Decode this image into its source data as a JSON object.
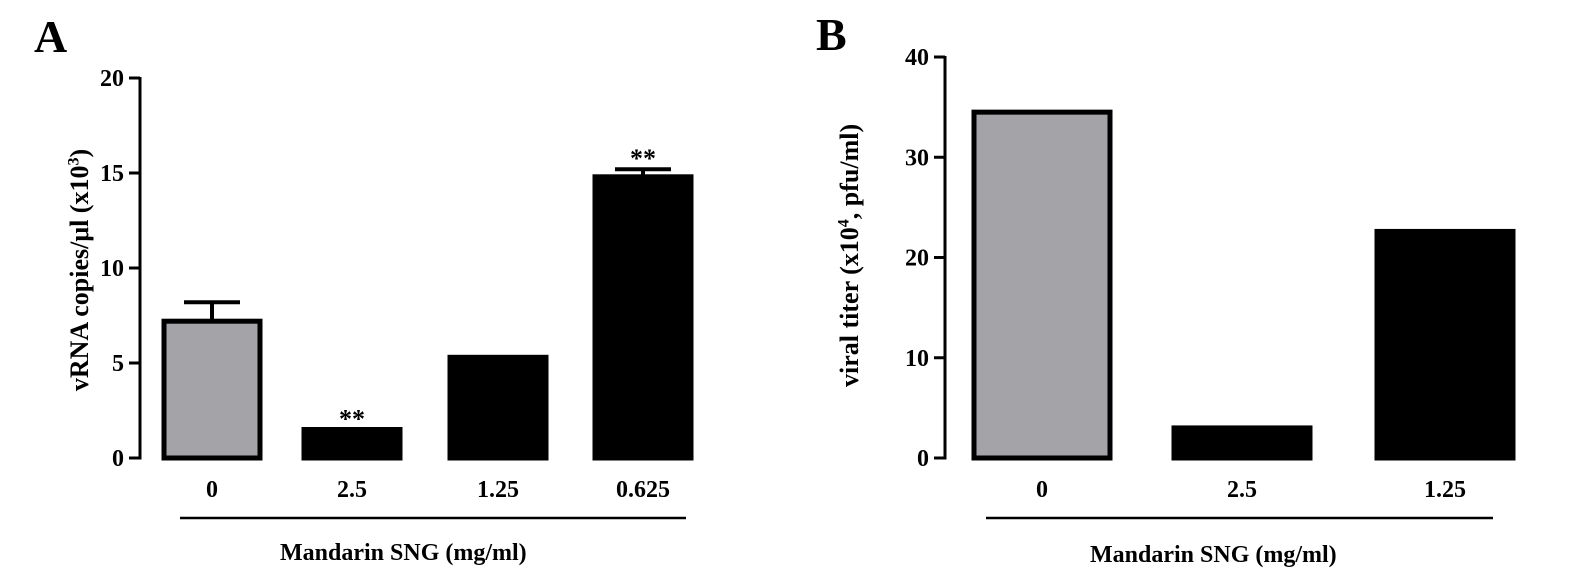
{
  "chart_data": [
    {
      "type": "bar",
      "panel_label": "A",
      "categories": [
        "0",
        "2.5",
        "1.25",
        "0.625"
      ],
      "values": [
        7.2,
        1.5,
        5.3,
        14.8
      ],
      "errors": [
        1.0,
        0,
        0,
        0.4
      ],
      "annotations": [
        "",
        "**",
        "",
        "**"
      ],
      "colors": [
        "#a3a3a8",
        "#000000",
        "#000000",
        "#000000"
      ],
      "ylabel_pre": "vRNA copies/μl (x10",
      "ylabel_sup": "3",
      "ylabel_post": ")",
      "xlabel": "Mandarin SNG (mg/ml)",
      "ylim": [
        0,
        20
      ],
      "yticks": [
        0,
        5,
        10,
        15,
        20
      ],
      "grid": false,
      "legend": "none"
    },
    {
      "type": "bar",
      "panel_label": "B",
      "categories": [
        "0",
        "2.5",
        "1.25"
      ],
      "values": [
        34.5,
        3,
        22.6
      ],
      "errors": [
        0,
        0,
        0
      ],
      "annotations": [
        "",
        "",
        ""
      ],
      "colors": [
        "#a3a3a8",
        "#000000",
        "#000000"
      ],
      "ylabel_pre": "viral titer (x10",
      "ylabel_sup": "4",
      "ylabel_post": ", pfu/ml)",
      "xlabel": "Mandarin SNG (mg/ml)",
      "ylim": [
        0,
        40
      ],
      "yticks": [
        0,
        10,
        20,
        30,
        40
      ],
      "grid": false,
      "legend": "none"
    }
  ]
}
